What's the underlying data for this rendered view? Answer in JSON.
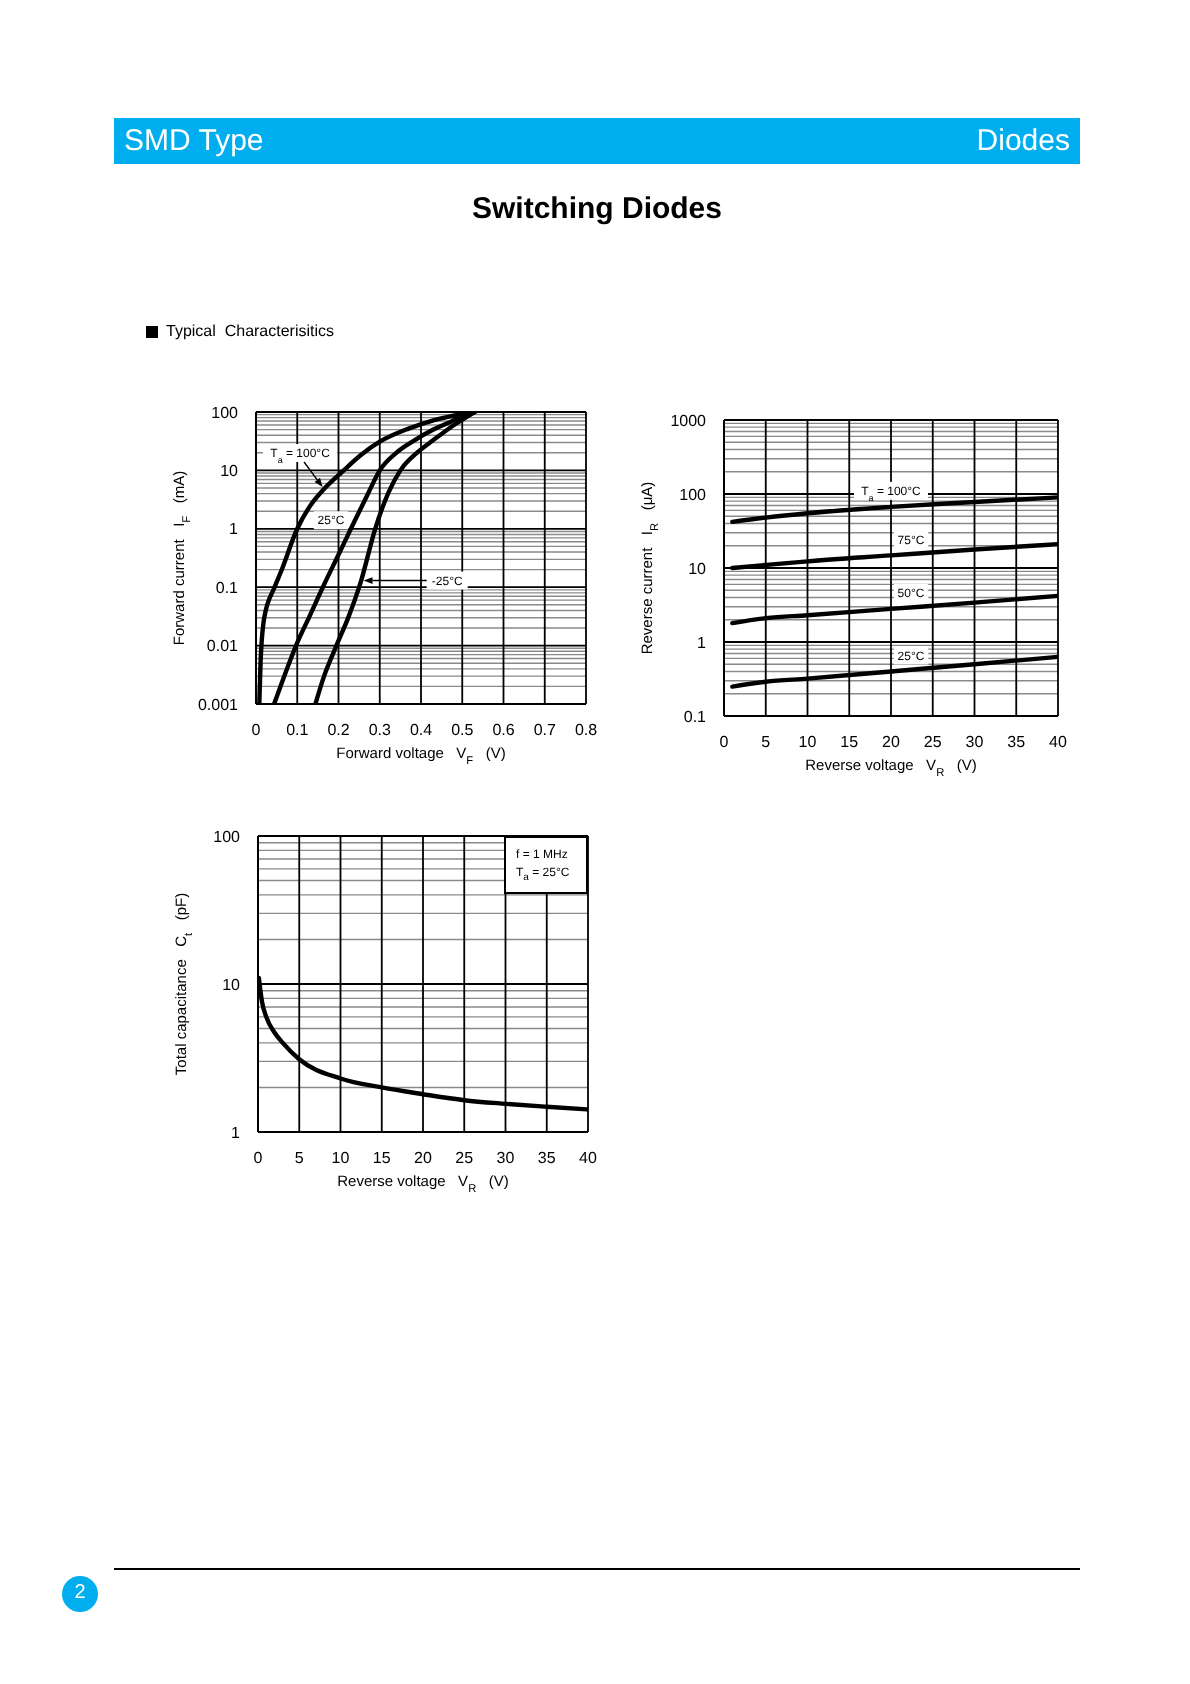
{
  "chart_data": [
    {
      "type": "other",
      "title": "Switching Diodes",
      "annotations": [
        "SMD Type",
        "Diodes",
        "Typical  Characterisitics",
        "2"
      ]
    },
    {
      "type": "line",
      "xlabel": "Forward voltage   V$_{F}$   (V)",
      "ylabel": "Forward current   I$_{F}$   (mA)",
      "log": "y",
      "xlim": [
        0,
        0.8
      ],
      "xticks": [
        0,
        0.1,
        0.2,
        0.3,
        0.4,
        0.5,
        0.6,
        0.7,
        0.8
      ],
      "ylim": [
        0.001,
        100
      ],
      "yticks": [
        0.001,
        {
          "value": 0.002,
          "label": null
        },
        {
          "value": 0.003,
          "label": null
        },
        {
          "value": 0.004,
          "label": null
        },
        {
          "value": 0.005,
          "label": null
        },
        {
          "value": 0.006,
          "label": null
        },
        {
          "value": 0.007,
          "label": null
        },
        {
          "value": 0.008,
          "label": null
        },
        {
          "value": 0.009,
          "label": null
        },
        0.01,
        {
          "value": 0.02,
          "label": null
        },
        {
          "value": 0.03,
          "label": null
        },
        {
          "value": 0.04,
          "label": null
        },
        {
          "value": 0.05,
          "label": null
        },
        {
          "value": 0.06,
          "label": null
        },
        {
          "value": 0.07,
          "label": null
        },
        {
          "value": 0.08,
          "label": null
        },
        {
          "value": 0.09,
          "label": null
        },
        0.1,
        {
          "value": 0.2,
          "label": null
        },
        {
          "value": 0.3,
          "label": null
        },
        {
          "value": 0.4,
          "label": null
        },
        {
          "value": 0.5,
          "label": null
        },
        {
          "value": 0.6,
          "label": null
        },
        {
          "value": 0.7,
          "label": null
        },
        {
          "value": 0.8,
          "label": null
        },
        {
          "value": 0.9,
          "label": null
        },
        1,
        {
          "value": 2,
          "label": null
        },
        {
          "value": 3,
          "label": null
        },
        {
          "value": 4,
          "label": null
        },
        {
          "value": 5,
          "label": null
        },
        {
          "value": 6,
          "label": null
        },
        {
          "value": 7,
          "label": null
        },
        {
          "value": 8,
          "label": null
        },
        {
          "value": 9,
          "label": null
        },
        10,
        {
          "value": 20,
          "label": null
        },
        {
          "value": 30,
          "label": null
        },
        {
          "value": 40,
          "label": null
        },
        {
          "value": 50,
          "label": null
        },
        {
          "value": 60,
          "label": null
        },
        {
          "value": 70,
          "label": null
        },
        {
          "value": 80,
          "label": null
        },
        {
          "value": 90,
          "label": null
        },
        100
      ],
      "grid": true,
      "series": [
        {
          "name": "T$_{a}$ = 100°C",
          "color": "#000000",
          "x": [
            0.008,
            0.011,
            0.02,
            0.045,
            0.06,
            0.1,
            0.13,
            0.165,
            0.21,
            0.255,
            0.3,
            0.37,
            0.43,
            0.53
          ],
          "values": [
            0.001,
            0.005,
            0.03,
            0.1,
            0.18,
            1,
            2.4,
            4.8,
            9.6,
            18.5,
            31,
            52,
            72,
            100
          ]
        },
        {
          "name": "25°C",
          "color": "#000000",
          "x": [
            0.044,
            0.07,
            0.097,
            0.13,
            0.162,
            0.2,
            0.24,
            0.27,
            0.3,
            0.34,
            0.385,
            0.43,
            0.48,
            0.53
          ],
          "values": [
            0.001,
            0.0032,
            0.01,
            0.032,
            0.1,
            0.36,
            1.4,
            3.8,
            10,
            20,
            33,
            50,
            72,
            100
          ]
        },
        {
          "name": "-25°C",
          "color": "#000000",
          "x": [
            0.144,
            0.165,
            0.195,
            0.225,
            0.25,
            0.255,
            0.289,
            0.32,
            0.35,
            0.39,
            0.43,
            0.48,
            0.53
          ],
          "values": [
            0.001,
            0.003,
            0.01,
            0.032,
            0.1,
            0.13,
            1,
            4,
            10,
            20,
            33,
            60,
            100
          ]
        }
      ]
    },
    {
      "type": "line",
      "xlabel": "Reverse voltage   V$_{R}$   (V)",
      "ylabel": "Reverse current   I$_{R}$   (μA)",
      "log": "y",
      "xlim": [
        0,
        40
      ],
      "xticks": [
        0,
        5,
        10,
        15,
        20,
        25,
        30,
        35,
        40
      ],
      "ylim": [
        0.1,
        1000
      ],
      "yticks": [
        0.1,
        {
          "value": 0.2,
          "label": null
        },
        {
          "value": 0.3,
          "label": null
        },
        {
          "value": 0.4,
          "label": null
        },
        {
          "value": 0.5,
          "label": null
        },
        {
          "value": 0.6,
          "label": null
        },
        {
          "value": 0.7,
          "label": null
        },
        {
          "value": 0.8,
          "label": null
        },
        {
          "value": 0.9,
          "label": null
        },
        1,
        {
          "value": 2,
          "label": null
        },
        {
          "value": 3,
          "label": null
        },
        {
          "value": 4,
          "label": null
        },
        {
          "value": 5,
          "label": null
        },
        {
          "value": 6,
          "label": null
        },
        {
          "value": 7,
          "label": null
        },
        {
          "value": 8,
          "label": null
        },
        {
          "value": 9,
          "label": null
        },
        10,
        {
          "value": 20,
          "label": null
        },
        {
          "value": 30,
          "label": null
        },
        {
          "value": 40,
          "label": null
        },
        {
          "value": 50,
          "label": null
        },
        {
          "value": 60,
          "label": null
        },
        {
          "value": 70,
          "label": null
        },
        {
          "value": 80,
          "label": null
        },
        {
          "value": 90,
          "label": null
        },
        100,
        {
          "value": 200,
          "label": null
        },
        {
          "value": 300,
          "label": null
        },
        {
          "value": 400,
          "label": null
        },
        {
          "value": 500,
          "label": null
        },
        {
          "value": 600,
          "label": null
        },
        {
          "value": 700,
          "label": null
        },
        {
          "value": 800,
          "label": null
        },
        {
          "value": 900,
          "label": null
        },
        1000
      ],
      "grid": true,
      "x": [
        1,
        5,
        10,
        20,
        30,
        40
      ],
      "series": [
        {
          "name": "T$_{a}$ = 100°C",
          "color": "#000000",
          "values": [
            42,
            48,
            55,
            67,
            78,
            90
          ]
        },
        {
          "name": "75°C",
          "color": "#000000",
          "values": [
            10,
            11,
            12.3,
            14.8,
            17.8,
            21
          ]
        },
        {
          "name": "50°C",
          "color": "#000000",
          "values": [
            1.8,
            2.1,
            2.3,
            2.8,
            3.4,
            4.2
          ]
        },
        {
          "name": "25°C",
          "color": "#000000",
          "values": [
            0.25,
            0.29,
            0.32,
            0.4,
            0.5,
            0.63
          ]
        }
      ]
    },
    {
      "type": "line",
      "xlabel": "Reverse voltage   V$_{R}$   (V)",
      "ylabel": "Total capacitance   C$_{t}$   (pF)",
      "annotations": [
        "f = 1 MHz",
        "T$_{a}$ = 25°C"
      ],
      "log": "y",
      "xlim": [
        0,
        40
      ],
      "xticks": [
        0,
        5,
        10,
        15,
        20,
        25,
        30,
        35,
        40
      ],
      "ylim": [
        1,
        100
      ],
      "yticks": [
        1,
        {
          "value": 2,
          "label": null
        },
        {
          "value": 3,
          "label": null
        },
        {
          "value": 4,
          "label": null
        },
        {
          "value": 5,
          "label": null
        },
        {
          "value": 6,
          "label": null
        },
        {
          "value": 7,
          "label": null
        },
        {
          "value": 8,
          "label": null
        },
        {
          "value": 9,
          "label": null
        },
        10,
        {
          "value": 20,
          "label": null
        },
        {
          "value": 30,
          "label": null
        },
        {
          "value": 40,
          "label": null
        },
        {
          "value": 50,
          "label": null
        },
        {
          "value": 60,
          "label": null
        },
        {
          "value": 70,
          "label": null
        },
        {
          "value": 80,
          "label": null
        },
        {
          "value": 90,
          "label": null
        },
        100
      ],
      "grid": true,
      "series": [
        {
          "color": "#000000",
          "x": [
            0.1,
            0.5,
            1,
            2,
            3,
            5,
            10,
            15,
            20,
            25,
            30,
            35,
            40
          ],
          "values": [
            11,
            7.5,
            6,
            4.7,
            4,
            3.1,
            2.3,
            2,
            1.8,
            1.64,
            1.55,
            1.48,
            1.42
          ]
        }
      ]
    }
  ]
}
